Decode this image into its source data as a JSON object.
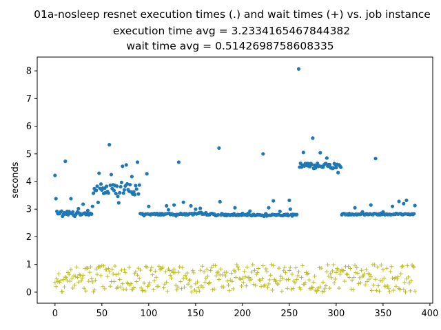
{
  "chart_data": {
    "type": "scatter",
    "title_lines": [
      "01a-nosleep resnet execution times (.) and wait times (+) vs. job instance",
      "execution time avg = 3.2334165467844382",
      "wait time avg = 0.5142698758608335"
    ],
    "xlabel": "",
    "ylabel": "seconds",
    "xlim": [
      -19,
      403
    ],
    "ylim": [
      -0.4,
      8.5
    ],
    "xticks": [
      0,
      50,
      100,
      150,
      200,
      250,
      300,
      350,
      400
    ],
    "yticks": [
      0,
      1,
      2,
      3,
      4,
      5,
      6,
      7,
      8
    ],
    "grid": false,
    "legend": "none",
    "series": [
      {
        "marker": "dot",
        "color": "#1f77b4",
        "n": 385,
        "segments": [
          {
            "x": [
              0,
              40
            ],
            "base": 2.83,
            "spread": 0.1,
            "extra": [
              [
                0,
                4.22
              ],
              [
                1,
                3.38
              ],
              [
                2,
                2.92
              ],
              [
                7,
                2.93
              ],
              [
                11,
                4.73
              ],
              [
                13,
                2.92
              ],
              [
                17,
                3.38
              ],
              [
                19,
                2.9
              ],
              [
                25,
                3.02
              ],
              [
                30,
                3.18
              ],
              [
                35,
                2.95
              ],
              [
                40,
                3.1
              ]
            ]
          },
          {
            "x": [
              41,
              90
            ],
            "base": 3.7,
            "spread": 0.6,
            "extra": [
              [
                58,
                5.33
              ],
              [
                47,
                4.3
              ],
              [
                72,
                4.55
              ],
              [
                76,
                4.6
              ],
              [
                88,
                4.7
              ],
              [
                60,
                4.25
              ]
            ]
          },
          {
            "x": [
              91,
              170
            ],
            "base": 2.82,
            "spread": 0.07,
            "extra": [
              [
                98,
                4.28
              ],
              [
                100,
                3.1
              ],
              [
                119,
                3.12
              ],
              [
                121,
                2.98
              ],
              [
                127,
                3.15
              ],
              [
                132,
                4.7
              ],
              [
                137,
                3.25
              ],
              [
                145,
                3.12
              ],
              [
                150,
                3.0
              ],
              [
                155,
                3.03
              ]
            ]
          },
          {
            "x": [
              171,
              258
            ],
            "base": 2.79,
            "spread": 0.06,
            "extra": [
              [
                175,
                5.21
              ],
              [
                176,
                3.27
              ],
              [
                192,
                3.05
              ],
              [
                208,
                2.93
              ],
              [
                222,
                5.0
              ],
              [
                228,
                3.05
              ],
              [
                233,
                3.3
              ],
              [
                240,
                2.92
              ],
              [
                250,
                3.32
              ],
              [
                251,
                3.0
              ],
              [
                260,
                8.07
              ]
            ]
          },
          {
            "x": [
              261,
              305
            ],
            "base": 4.58,
            "spread": 0.22,
            "extra": [
              [
                265,
                5.05
              ],
              [
                275,
                5.57
              ],
              [
                283,
                5.04
              ],
              [
                290,
                4.85
              ],
              [
                302,
                4.32
              ]
            ]
          },
          {
            "x": [
              306,
              384
            ],
            "base": 2.82,
            "spread": 0.06,
            "extra": [
              [
                320,
                3.05
              ],
              [
                328,
                2.9
              ],
              [
                337,
                3.15
              ],
              [
                342,
                4.83
              ],
              [
                350,
                2.9
              ],
              [
                360,
                3.1
              ],
              [
                367,
                3.28
              ],
              [
                372,
                3.2
              ],
              [
                375,
                3.32
              ],
              [
                384,
                3.13
              ]
            ]
          }
        ]
      },
      {
        "marker": "plus",
        "color": "#bcbd22",
        "n": 385,
        "x": [
          0,
          384
        ],
        "range": [
          0.0,
          1.0
        ]
      }
    ]
  }
}
